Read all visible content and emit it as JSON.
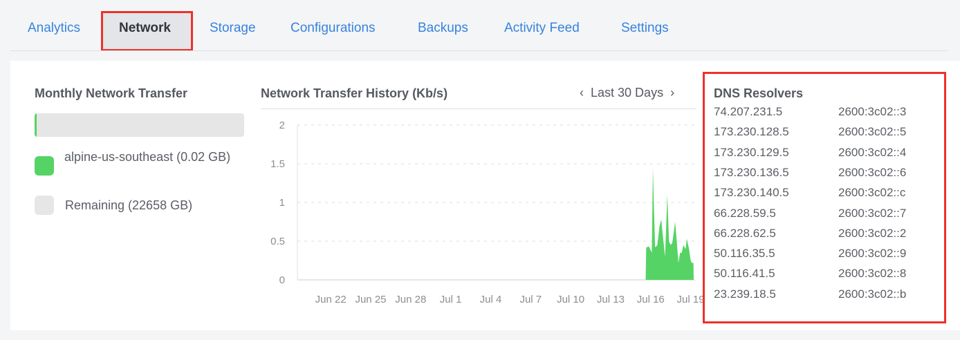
{
  "tabs": [
    {
      "label": "Analytics",
      "active": false
    },
    {
      "label": "Network",
      "active": true
    },
    {
      "label": "Storage",
      "active": false
    },
    {
      "label": "Configurations",
      "active": false
    },
    {
      "label": "Backups",
      "active": false
    },
    {
      "label": "Activity Feed",
      "active": false
    },
    {
      "label": "Settings",
      "active": false
    }
  ],
  "transfer": {
    "title": "Monthly Network Transfer",
    "used_fraction": 1e-06,
    "legend": [
      {
        "label": "alpine-us-southeast (0.02 GB)",
        "color": "#56d365"
      },
      {
        "label": "Remaining (22658 GB)",
        "color": "#e6e6e6"
      }
    ]
  },
  "chart_header": {
    "title": "Network Transfer History (Kb/s)",
    "range_label": "Last 30 Days",
    "prev_icon": "chevron-left-icon",
    "next_icon": "chevron-right-icon"
  },
  "chart_data": {
    "type": "area",
    "title": "Network Transfer History (Kb/s)",
    "color": "#56d365",
    "grid": true,
    "ylim": [
      0,
      2
    ],
    "yticks": [
      "0",
      "0.5",
      "1",
      "1.5",
      "2"
    ],
    "xlim": [
      "Jun 19 12:00",
      "Jul 19 08:00"
    ],
    "xticks": [
      "Jun 22",
      "Jun 25",
      "Jun 28",
      "Jul 1",
      "Jul 4",
      "Jul 7",
      "Jul 10",
      "Jul 13",
      "Jul 16",
      "Jul 19"
    ],
    "series": [
      {
        "points": [
          [
            "Jul 15 15:00",
            0
          ],
          [
            "Jul 15 16:00",
            0.42
          ],
          [
            "Jul 15 21:00",
            0.43
          ],
          [
            "Jul 16 02:00",
            0.35
          ],
          [
            "Jul 16 04:00",
            1.45
          ],
          [
            "Jul 16 06:00",
            0.9
          ],
          [
            "Jul 16 08:00",
            0.42
          ],
          [
            "Jul 16 12:00",
            0.45
          ],
          [
            "Jul 16 16:00",
            0.7
          ],
          [
            "Jul 16 19:00",
            0.78
          ],
          [
            "Jul 16 23:00",
            0.5
          ],
          [
            "Jul 17 02:00",
            0.3
          ],
          [
            "Jul 17 06:00",
            1.1
          ],
          [
            "Jul 17 09:00",
            0.5
          ],
          [
            "Jul 17 12:00",
            0.45
          ],
          [
            "Jul 17 15:00",
            0.48
          ],
          [
            "Jul 17 20:00",
            0.75
          ],
          [
            "Jul 17 23:00",
            0.5
          ],
          [
            "Jul 18 02:00",
            0.22
          ],
          [
            "Jul 18 05:00",
            0.35
          ],
          [
            "Jul 18 08:00",
            0.35
          ],
          [
            "Jul 18 11:00",
            0.45
          ],
          [
            "Jul 18 15:00",
            0.4
          ],
          [
            "Jul 18 17:00",
            0.53
          ],
          [
            "Jul 18 21:00",
            0.4
          ],
          [
            "Jul 19 00:00",
            0.25
          ],
          [
            "Jul 19 02:00",
            0.22
          ],
          [
            "Jul 19 05:00",
            0.22
          ],
          [
            "Jul 19 05:30",
            0
          ]
        ]
      }
    ]
  },
  "dns": {
    "title": "DNS Resolvers",
    "rows": [
      [
        "74.207.231.5",
        "2600:3c02::3"
      ],
      [
        "173.230.128.5",
        "2600:3c02::5"
      ],
      [
        "173.230.129.5",
        "2600:3c02::4"
      ],
      [
        "173.230.136.5",
        "2600:3c02::6"
      ],
      [
        "173.230.140.5",
        "2600:3c02::c"
      ],
      [
        "66.228.59.5",
        "2600:3c02::7"
      ],
      [
        "66.228.62.5",
        "2600:3c02::2"
      ],
      [
        "50.116.35.5",
        "2600:3c02::9"
      ],
      [
        "50.116.41.5",
        "2600:3c02::8"
      ],
      [
        "23.239.18.5",
        "2600:3c02::b"
      ]
    ]
  }
}
